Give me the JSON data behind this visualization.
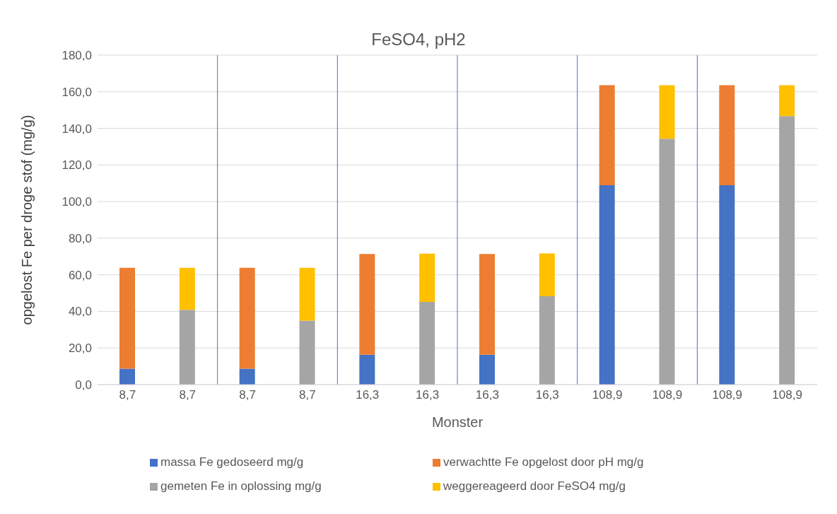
{
  "chart_data": {
    "type": "bar",
    "title": "FeSO4, pH2",
    "xlabel": "Monster",
    "ylabel": "opgelost Fe per droge stof (mg/g)",
    "stacked": true,
    "categories": [
      "8,7",
      "8,7",
      "8,7",
      "8,7",
      "16,3",
      "16,3",
      "16,3",
      "16,3",
      "108,9",
      "108,9",
      "108,9",
      "108,9"
    ],
    "series": [
      {
        "name": "massa Fe gedoseerd mg/g",
        "color": "#4472c4",
        "values": [
          8.7,
          null,
          8.7,
          null,
          16.3,
          null,
          16.3,
          null,
          108.9,
          null,
          108.9,
          null
        ]
      },
      {
        "name": "verwachtte Fe opgelost door pH mg/g",
        "color": "#ed7d31",
        "values": [
          55.1,
          null,
          55.1,
          null,
          55.1,
          null,
          55.1,
          null,
          54.7,
          null,
          54.7,
          null
        ]
      },
      {
        "name": "gemeten Fe in oplossing mg/g",
        "color": "#a5a5a5",
        "values": [
          null,
          40.8,
          null,
          35.0,
          null,
          45.2,
          null,
          48.3,
          null,
          134.3,
          null,
          146.7
        ]
      },
      {
        "name": "weggereageerd door FeSO4 mg/g",
        "color": "#ffc000",
        "values": [
          null,
          23.0,
          null,
          28.8,
          null,
          26.4,
          null,
          23.4,
          null,
          29.3,
          null,
          16.9
        ]
      }
    ],
    "ylim": [
      0,
      180
    ],
    "yticks": [
      {
        "value": 0,
        "label": "0,0"
      },
      {
        "value": 20,
        "label": "20,0"
      },
      {
        "value": 40,
        "label": "40,0"
      },
      {
        "value": 60,
        "label": "60,0"
      },
      {
        "value": 80,
        "label": "80,0"
      },
      {
        "value": 100,
        "label": "100,0"
      },
      {
        "value": 120,
        "label": "120,0"
      },
      {
        "value": 140,
        "label": "140,0"
      },
      {
        "value": 160,
        "label": "160,0"
      },
      {
        "value": 180,
        "label": "180,0"
      }
    ],
    "grid": "y",
    "legend": "bottom"
  }
}
